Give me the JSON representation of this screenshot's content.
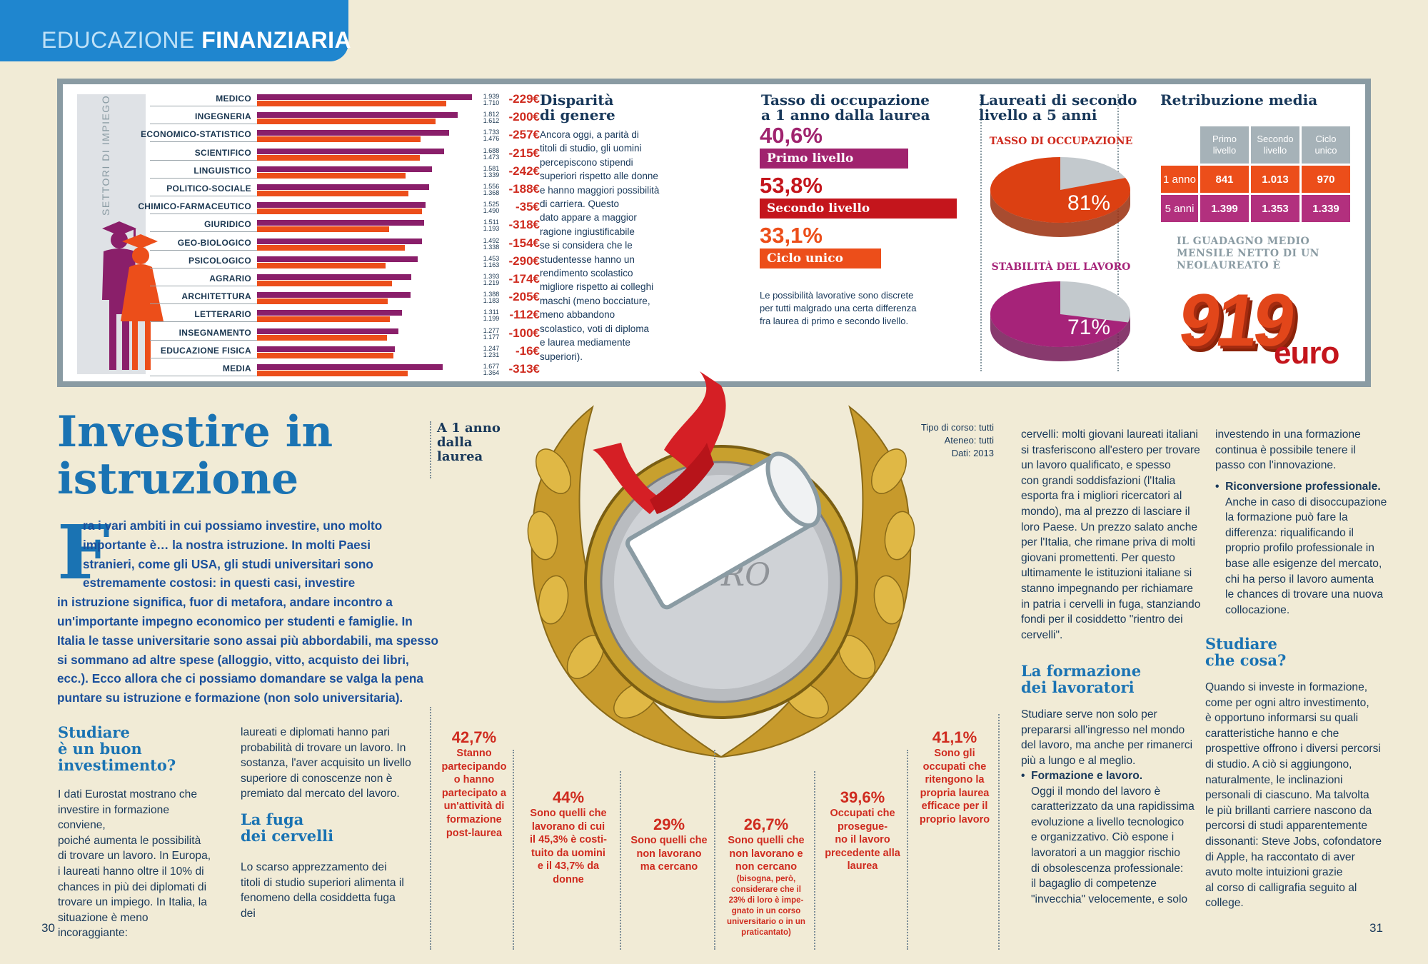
{
  "header": {
    "section_light": "EDUCAZIONE",
    "section_bold": "FINANZIARIA"
  },
  "sectors": {
    "axis_title": "SETTORI DI IMPIEGO",
    "max_value": 2000,
    "series_colors": {
      "men": "#8a1f6a",
      "women": "#ec4e1a"
    },
    "rows": [
      {
        "name": "MEDICO",
        "men": 1939,
        "women": 1710,
        "men_label": "1.939",
        "women_label": "1.710",
        "diff": "-229€"
      },
      {
        "name": "INGEGNERIA",
        "men": 1812,
        "women": 1612,
        "men_label": "1.812",
        "women_label": "1.612",
        "diff": "-200€"
      },
      {
        "name": "ECONOMICO-STATISTICO",
        "men": 1733,
        "women": 1476,
        "men_label": "1.733",
        "women_label": "1.476",
        "diff": "-257€"
      },
      {
        "name": "SCIENTIFICO",
        "men": 1688,
        "women": 1473,
        "men_label": "1.688",
        "women_label": "1.473",
        "diff": "-215€"
      },
      {
        "name": "LINGUISTICO",
        "men": 1581,
        "women": 1339,
        "men_label": "1.581",
        "women_label": "1.339",
        "diff": "-242€"
      },
      {
        "name": "POLITICO-SOCIALE",
        "men": 1556,
        "women": 1368,
        "men_label": "1.556",
        "women_label": "1.368",
        "diff": "-188€"
      },
      {
        "name": "CHIMICO-FARMACEUTICO",
        "men": 1525,
        "women": 1490,
        "men_label": "1.525",
        "women_label": "1.490",
        "diff": "-35€"
      },
      {
        "name": "GIURIDICO",
        "men": 1511,
        "women": 1193,
        "men_label": "1.511",
        "women_label": "1.193",
        "diff": "-318€"
      },
      {
        "name": "GEO-BIOLOGICO",
        "men": 1492,
        "women": 1338,
        "men_label": "1.492",
        "women_label": "1.338",
        "diff": "-154€"
      },
      {
        "name": "PSICOLOGICO",
        "men": 1453,
        "women": 1163,
        "men_label": "1.453",
        "women_label": "1.163",
        "diff": "-290€"
      },
      {
        "name": "AGRARIO",
        "men": 1393,
        "women": 1219,
        "men_label": "1.393",
        "women_label": "1.219",
        "diff": "-174€"
      },
      {
        "name": "ARCHITETTURA",
        "men": 1388,
        "women": 1183,
        "men_label": "1.388",
        "women_label": "1.183",
        "diff": "-205€"
      },
      {
        "name": "LETTERARIO",
        "men": 1311,
        "women": 1199,
        "men_label": "1.311",
        "women_label": "1.199",
        "diff": "-112€"
      },
      {
        "name": "INSEGNAMENTO",
        "men": 1277,
        "women": 1177,
        "men_label": "1.277",
        "women_label": "1.177",
        "diff": "-100€"
      },
      {
        "name": "EDUCAZIONE FISICA",
        "men": 1247,
        "women": 1231,
        "men_label": "1.247",
        "women_label": "1.231",
        "diff": "-16€"
      },
      {
        "name": "MEDIA",
        "men": 1677,
        "women": 1364,
        "men_label": "1.677",
        "women_label": "1.364",
        "diff": "-313€"
      }
    ]
  },
  "disparita": {
    "title_1": "Disparità",
    "title_2": "di genere",
    "lines": [
      "Ancora oggi, a parità di",
      "titoli di studio, gli uomini",
      "percepiscono stipendi",
      "superiori rispetto alle donne",
      "e hanno maggiori possibilità",
      "di carriera. Questo",
      "dato appare a maggior",
      "ragione ingiustificabile",
      "se si considera che le",
      "studentesse hanno un",
      "rendimento scolastico",
      "migliore rispetto ai colleghi",
      "maschi (meno bocciature,",
      "meno abbandono",
      "scolastico, voti di diploma",
      "e laurea mediamente",
      "superiori)."
    ]
  },
  "occupazione": {
    "title_1": "Tasso di occupazione",
    "title_2": "a 1 anno dalla laurea",
    "items": [
      {
        "pct": "40,6%",
        "label": "Primo livello",
        "color": "#a0236e",
        "value": 40.6
      },
      {
        "pct": "53,8%",
        "label": "Secondo livello",
        "color": "#c4151c",
        "value": 53.8
      },
      {
        "pct": "33,1%",
        "label": "Ciclo unico",
        "color": "#ec4e1a",
        "value": 33.1
      }
    ],
    "note_lines": [
      "Le possibilità lavorative sono discrete",
      "per tutti malgrado una certa differenza",
      "fra laurea di primo e secondo livello."
    ]
  },
  "laureati": {
    "title_1": "Laureati di secondo",
    "title_2": "livello a 5 anni",
    "pie1": {
      "title": "TASSO DI OCCUPAZIONE",
      "pct": "81%",
      "value": 81,
      "color": "#dc4012"
    },
    "pie2": {
      "title": "STABILITÀ DEL LAVORO",
      "pct": "71%",
      "value": 71,
      "color": "#a62379"
    }
  },
  "retribuzione": {
    "title": "Retribuzione media",
    "headers": [
      [
        "Primo",
        "livello"
      ],
      [
        "Secondo",
        "livello"
      ],
      [
        "Ciclo",
        "unico"
      ]
    ],
    "rows": [
      {
        "label": "1 anno",
        "values": [
          "841",
          "1.013",
          "970"
        ],
        "color": "#ec4e1a"
      },
      {
        "label": "5 anni",
        "values": [
          "1.399",
          "1.353",
          "1.339"
        ],
        "color": "#b2307e"
      }
    ],
    "guadagno_lines": [
      "IL GUADAGNO MEDIO",
      "MENSILE NETTO DI UN",
      "NEOLAUREATO È"
    ],
    "amount": "919",
    "currency": "euro"
  },
  "article": {
    "title_1": "Investire in",
    "title_2": "istruzione",
    "drop_cap": "F",
    "intro_lines": [
      "ra i vari ambiti in cui possiamo investire, uno molto",
      "importante è… la nostra istruzione. In molti Paesi",
      "stranieri, come gli USA, gli studi universitari sono",
      "estremamente costosi: in questi casi, investire",
      "in istruzione significa, fuor di metafora, andare incontro a",
      "un'importante impegno economico per studenti e famiglie. In",
      "Italia le tasse universitarie sono assai più abbordabili, ma spesso",
      "si sommano ad altre spese (alloggio, vitto, acquisto dei libri,",
      "ecc.). Ecco allora che ci possiamo domandare se valga la pena",
      "puntare su istruzione e formazione (non solo universitaria)."
    ],
    "h_studiare_1": "Studiare",
    "h_studiare_2": "è un buon",
    "h_studiare_3": "investimento?",
    "col1_lines": [
      "I dati Eurostat mostrano che",
      "investire in formazione conviene,",
      "poiché aumenta le possibilità",
      "di trovare un lavoro. In Europa,",
      "i laureati hanno oltre il 10% di",
      "chances in più dei diplomati di",
      "trovare un impiego. In Italia, la",
      "situazione è meno incoraggiante:"
    ],
    "col2_lines": [
      "laureati e diplomati hanno pari",
      "probabilità di trovare un lavoro. In",
      "sostanza, l'aver acquisito un livello",
      "superiore di conoscenze non è",
      "premiato dal mercato del lavoro."
    ],
    "h_fuga_1": "La fuga",
    "h_fuga_2": "dei cervelli",
    "col2b_lines": [
      "Lo scarso apprezzamento dei",
      "titoli di studio superiori alimenta il",
      "fenomeno della cosiddetta fuga dei"
    ],
    "col3_lines": [
      "cervelli: molti giovani laureati italiani",
      "si trasferiscono all'estero per trovare",
      "un lavoro qualificato, e spesso",
      "con grandi soddisfazioni (l'Italia",
      "esporta fra i migliori ricercatori al",
      "mondo), ma al prezzo di lasciare il",
      "loro Paese. Un prezzo salato anche",
      "per l'Italia, che rimane priva di molti",
      "giovani promettenti. Per questo",
      "ultimamente le istituzioni italiane si",
      "stanno impegnando per richiamare",
      "in patria i cervelli in fuga, stanziando",
      "fondi per il cosiddetto \"rientro dei",
      "cervelli\"."
    ],
    "h_formazione_1": "La formazione",
    "h_formazione_2": "dei lavoratori",
    "col3b_lines": [
      "Studiare serve non solo per",
      "prepararsi all'ingresso nel mondo",
      "del lavoro, ma anche per rimanerci",
      "più a lungo e al meglio."
    ],
    "bullet1_title": "Formazione e lavoro",
    "bullet1_lines": [
      "Oggi il mondo del lavoro è",
      "caratterizzato da una rapidissima",
      "evoluzione a livello tecnologico",
      "e organizzativo. Ciò espone i",
      "lavoratori a un maggior rischio",
      "di obsolescenza professionale:",
      "il bagaglio di competenze",
      "\"invecchia\" velocemente, e solo"
    ],
    "col4_lines": [
      "investendo in una formazione",
      "continua è possibile tenere il",
      "passo con l'innovazione."
    ],
    "bullet2_title": "Riconversione professionale",
    "bullet2_lines": [
      "Anche in caso di disoccupazione",
      "la formazione può fare la",
      "differenza: riqualificando il",
      "proprio profilo professionale in",
      "base alle esigenze del mercato,",
      "chi ha perso il lavoro aumenta",
      "le chances di trovare una nuova",
      "collocazione."
    ],
    "h_cosa_1": "Studiare",
    "h_cosa_2": "che cosa?",
    "col4b_lines": [
      "Quando si investe in formazione,",
      "come per ogni altro investimento,",
      "è opportuno informarsi su quali",
      "caratteristiche hanno e che",
      "prospettive offrono i diversi percorsi",
      "di studio. A ciò si aggiungono,",
      "naturalmente, le inclinazioni",
      "personali di ciascuno. Ma talvolta",
      "le più brillanti carriere nascono da",
      "percorsi di studi apparentemente",
      "dissonanti: Steve Jobs, cofondatore",
      "di Apple, ha raccontato di aver",
      "avuto molte intuizioni grazie",
      "al corso di calligrafia seguito al",
      "college."
    ]
  },
  "unanno": {
    "title_lines": [
      "A 1 anno",
      "dalla",
      "laurea"
    ],
    "source_lines": [
      "Tipo di corso: tutti",
      "Ateneo: tutti",
      "Dati: 2013"
    ],
    "coin_text": "EURO",
    "stats": [
      {
        "num": "42,7%",
        "lines": [
          "Stanno",
          "partecipando",
          "o hanno",
          "partecipato a",
          "un'attività di",
          "formazione",
          "post-laurea"
        ]
      },
      {
        "num": "44%",
        "lines": [
          "Sono quelli che",
          "lavorano di cui",
          "il 45,3% è costi-",
          "tuito da uomini",
          "e il 43,7% da",
          "donne"
        ]
      },
      {
        "num": "29%",
        "lines": [
          "Sono quelli che",
          "non lavorano",
          "ma cercano"
        ]
      },
      {
        "num": "26,7%",
        "lines": [
          "Sono quelli che",
          "non lavorano e",
          "non cercano"
        ],
        "small_lines": [
          "(bisogna, però,",
          "considerare che il",
          "23% di loro è impe-",
          "gnato in un corso",
          "universitario o in un",
          "praticantato)"
        ]
      },
      {
        "num": "39,6%",
        "lines": [
          "Occupati che",
          "prosegue-",
          "no il lavoro",
          "precedente alla",
          "laurea"
        ]
      },
      {
        "num": "41,1%",
        "lines": [
          "Sono gli",
          "occupati che",
          "ritengono la",
          "propria laurea",
          "efficace per il",
          "proprio lavoro"
        ]
      }
    ]
  },
  "pages": {
    "left": "30",
    "right": "31"
  }
}
